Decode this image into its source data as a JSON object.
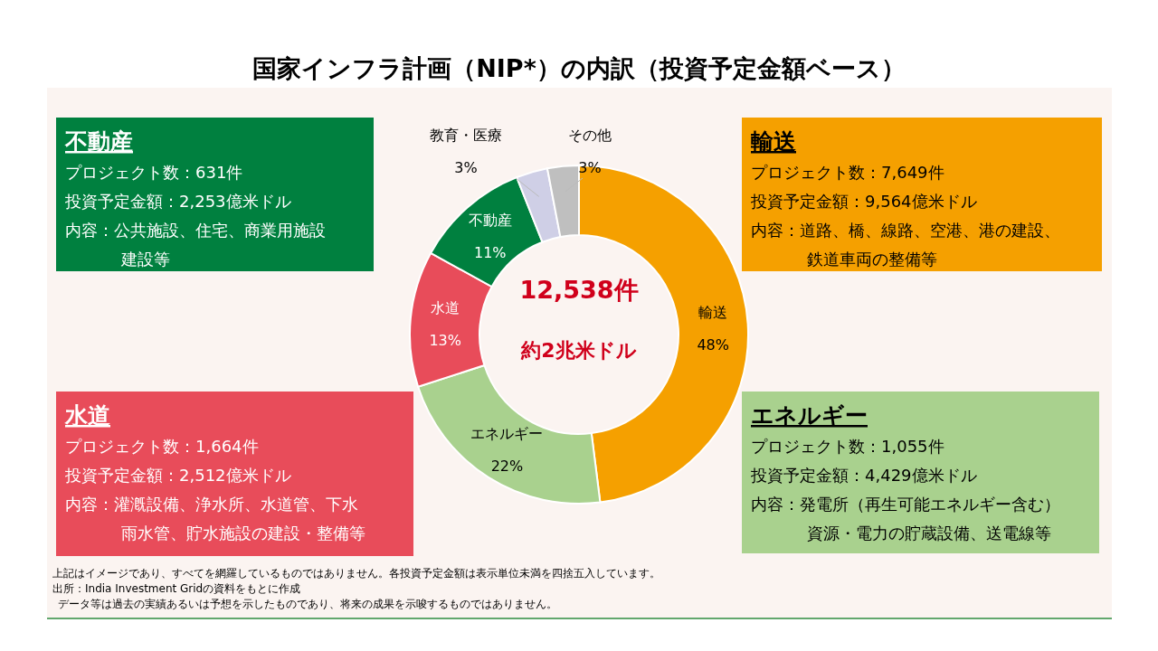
{
  "chart_data": {
    "type": "donut",
    "title": "国家インフラ計画（NIP*）の内訳（投資予定金額ベース）",
    "categories": [
      "輸送",
      "エネルギー",
      "水道",
      "不動産",
      "教育・医療",
      "その他"
    ],
    "values": [
      48,
      22,
      13,
      11,
      3,
      3
    ],
    "value_labels": [
      "48%",
      "22%",
      "13%",
      "11%",
      "3%",
      "3%"
    ],
    "colors": [
      "#f5a000",
      "#a9d18e",
      "#e84c5a",
      "#00803f",
      "#cfcfe6",
      "#bfbfbf"
    ],
    "annotations": [
      "12,538件",
      "約2兆米ドル",
      "不動産",
      "プロジェクト数：631件",
      "投資予定金額：2,253億米ドル",
      "内容：公共施設、住宅、商業用施設",
      "建設等",
      "輸送",
      "プロジェクト数：7,649件",
      "投資予定金額：9,564億米ドル",
      "内容：道路、橋、線路、空港、港の建設、",
      "鉄道車両の整備等",
      "水道",
      "プロジェクト数：1,664件",
      "投資予定金額：2,512億米ドル",
      "内容：灌漑設備、浄水所、水道管、下水",
      "雨水管、貯水施設の建設・整備等",
      "エネルギー",
      "プロジェクト数：1,055件",
      "投資予定金額：4,429億米ドル",
      "内容：発電所（再生可能エネルギー含む）",
      "資源・電力の貯蔵設備、送電線等",
      "上記はイメージであり、すべてを網羅しているものではありません。各投資予定金額は表示単位未満を四捨五入しています。",
      "出所：India Investment Gridの資料をもとに作成",
      "データ等は過去の実績あるいは予想を示したものであり、将来の成果を示唆するものではありません。"
    ]
  }
}
